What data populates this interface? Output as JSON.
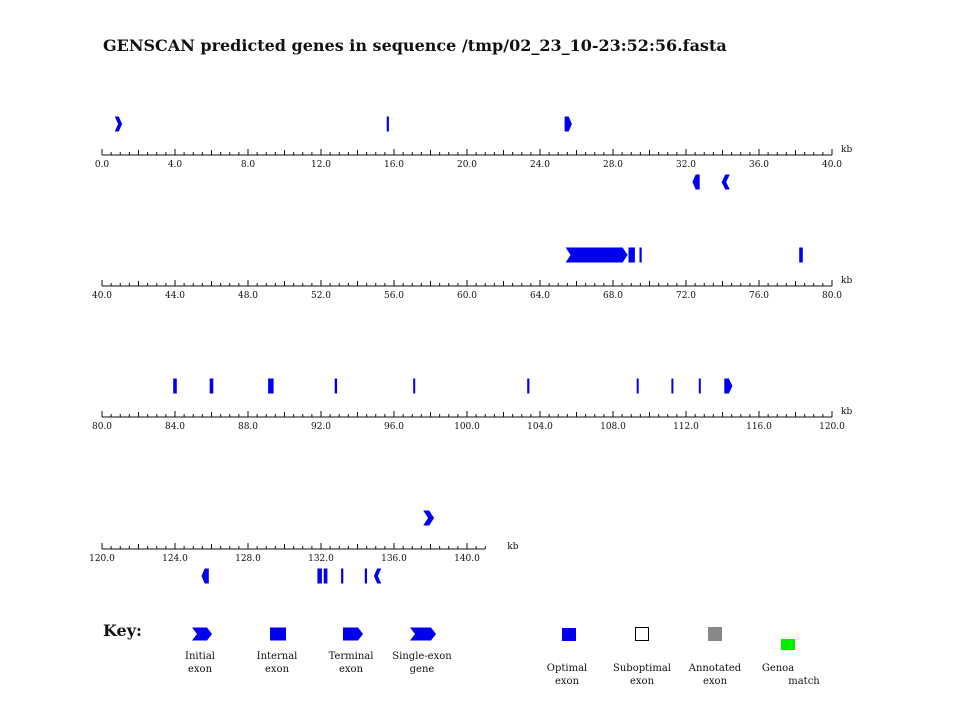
{
  "title": "GENSCAN predicted genes in sequence /tmp/02_23_10-23:52:56.fasta",
  "unit_label": "kb",
  "colors": {
    "exon": "#0000ee",
    "optimal": "#0000ee",
    "suboptimal": "#ffffff",
    "annotated": "#888888",
    "genoa": "#00ee00",
    "axis": "#111111"
  },
  "chart_data": {
    "type": "genomic-track",
    "tracks": [
      {
        "start": 0,
        "end": 40,
        "tick_labels": [
          "0.0",
          "4.0",
          "8.0",
          "12.0",
          "16.0",
          "20.0",
          "24.0",
          "28.0",
          "32.0",
          "36.0",
          "40.0"
        ],
        "features": [
          {
            "strand": "+",
            "type": "initial",
            "start": 0.7,
            "end": 1.1
          },
          {
            "strand": "+",
            "type": "internal",
            "start": 15.6,
            "end": 15.72
          },
          {
            "strand": "+",
            "type": "terminal",
            "start": 25.35,
            "end": 25.75
          },
          {
            "strand": "-",
            "type": "terminal",
            "start": 32.35,
            "end": 32.75
          },
          {
            "strand": "-",
            "type": "initial",
            "start": 33.95,
            "end": 34.4
          }
        ]
      },
      {
        "start": 40,
        "end": 80,
        "tick_labels": [
          "40.0",
          "44.0",
          "48.0",
          "52.0",
          "56.0",
          "60.0",
          "64.0",
          "68.0",
          "72.0",
          "76.0",
          "80.0"
        ],
        "features": [
          {
            "strand": "+",
            "type": "initial",
            "start": 65.4,
            "end": 68.8
          },
          {
            "strand": "+",
            "type": "internal",
            "start": 68.85,
            "end": 69.2
          },
          {
            "strand": "+",
            "type": "internal",
            "start": 69.45,
            "end": 69.57
          },
          {
            "strand": "+",
            "type": "internal",
            "start": 78.2,
            "end": 78.4
          }
        ]
      },
      {
        "start": 80,
        "end": 120,
        "tick_labels": [
          "80.0",
          "84.0",
          "88.0",
          "92.0",
          "96.0",
          "100.0",
          "104.0",
          "108.0",
          "112.0",
          "116.0",
          "120.0"
        ],
        "features": [
          {
            "strand": "+",
            "type": "internal",
            "start": 83.9,
            "end": 84.1
          },
          {
            "strand": "+",
            "type": "internal",
            "start": 85.9,
            "end": 86.1
          },
          {
            "strand": "+",
            "type": "internal",
            "start": 89.1,
            "end": 89.4
          },
          {
            "strand": "+",
            "type": "internal",
            "start": 92.75,
            "end": 92.88
          },
          {
            "strand": "+",
            "type": "internal",
            "start": 97.05,
            "end": 97.15
          },
          {
            "strand": "+",
            "type": "internal",
            "start": 103.3,
            "end": 103.42
          },
          {
            "strand": "+",
            "type": "internal",
            "start": 109.3,
            "end": 109.4
          },
          {
            "strand": "+",
            "type": "internal",
            "start": 111.2,
            "end": 111.3
          },
          {
            "strand": "+",
            "type": "internal",
            "start": 112.7,
            "end": 112.8
          },
          {
            "strand": "+",
            "type": "terminal",
            "start": 114.1,
            "end": 114.55
          }
        ]
      },
      {
        "start": 120,
        "end": 141,
        "tick_labels": [
          "120.0",
          "124.0",
          "128.0",
          "132.0",
          "136.0",
          "140.0"
        ],
        "features": [
          {
            "strand": "+",
            "type": "single",
            "start": 137.6,
            "end": 138.2
          },
          {
            "strand": "-",
            "type": "terminal",
            "start": 125.45,
            "end": 125.85
          },
          {
            "strand": "-",
            "type": "internal",
            "start": 131.8,
            "end": 132.05
          },
          {
            "strand": "-",
            "type": "internal",
            "start": 132.15,
            "end": 132.35
          },
          {
            "strand": "-",
            "type": "internal",
            "start": 133.1,
            "end": 133.22
          },
          {
            "strand": "-",
            "type": "internal",
            "start": 134.4,
            "end": 134.52
          },
          {
            "strand": "-",
            "type": "initial",
            "start": 134.9,
            "end": 135.3
          }
        ]
      }
    ]
  },
  "key": {
    "heading": "Key:",
    "shapes": [
      {
        "type": "initial",
        "label_line1": "Initial",
        "label_line2": "exon"
      },
      {
        "type": "internal",
        "label_line1": "Internal",
        "label_line2": "exon"
      },
      {
        "type": "terminal",
        "label_line1": "Terminal",
        "label_line2": "exon"
      },
      {
        "type": "single",
        "label_line1": "Single-exon",
        "label_line2": "gene"
      }
    ],
    "status": [
      {
        "type": "optimal",
        "label_line1": "Optimal",
        "label_line2": "exon"
      },
      {
        "type": "suboptimal",
        "label_line1": "Suboptimal",
        "label_line2": "exon"
      },
      {
        "type": "annotated",
        "label_line1": "Annotated",
        "label_line2": "exon"
      },
      {
        "type": "genoa",
        "label_line1": "Genoa",
        "label_line2": "match"
      }
    ]
  }
}
